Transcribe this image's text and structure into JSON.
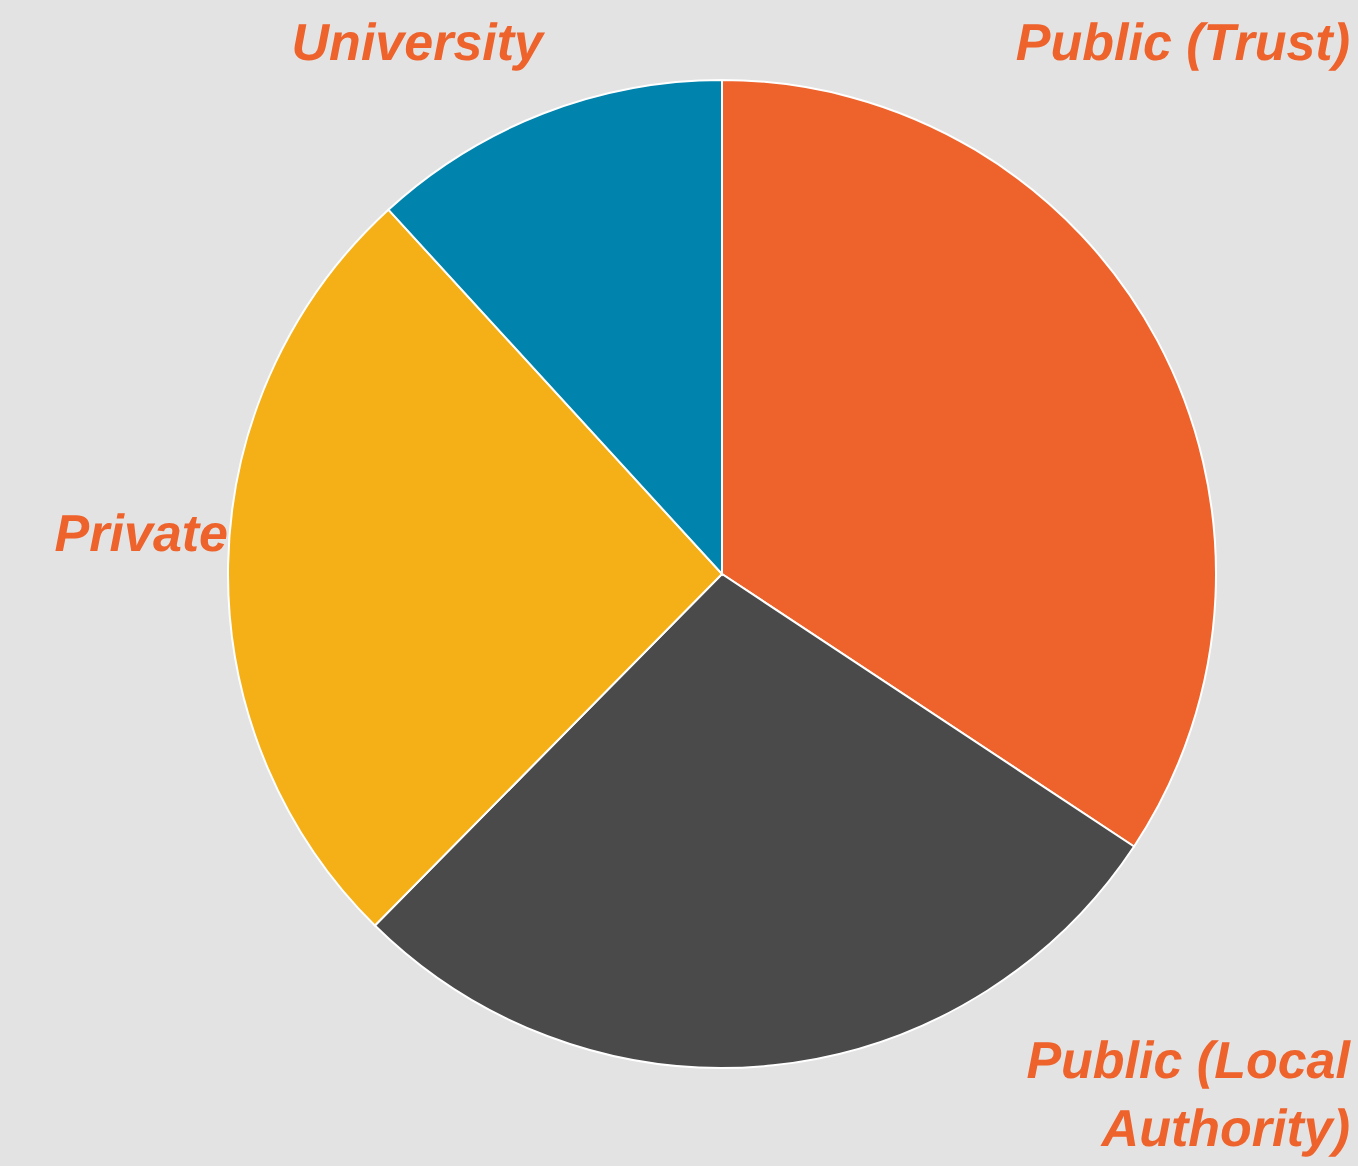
{
  "chart_data": {
    "type": "pie",
    "categories": [
      "Public (Trust)",
      "Public (Local Authority)",
      "Private",
      "University"
    ],
    "values": [
      34.3,
      28.1,
      25.8,
      11.8
    ],
    "colors": [
      "#ee622b",
      "#4a4a4a",
      "#f5b017",
      "#0083ad"
    ]
  }
}
